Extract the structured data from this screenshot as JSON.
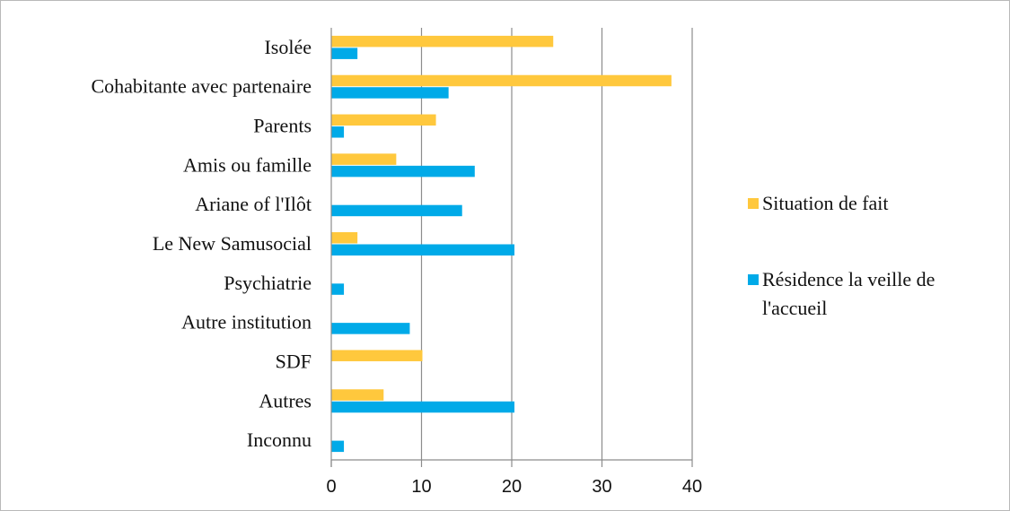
{
  "chart_data": {
    "type": "bar",
    "orientation": "horizontal",
    "categories": [
      "Isolée",
      "Cohabitante avec partenaire",
      "Parents",
      "Amis ou famille",
      "Ariane of l'Ilôt",
      "Le New Samusocial",
      "Psychiatrie",
      "Autre institution",
      "SDF",
      "Autres",
      "Inconnu"
    ],
    "series": [
      {
        "name": "Situation de fait",
        "color": "#FFC83D",
        "values": [
          24.6,
          37.7,
          11.6,
          7.2,
          0,
          2.9,
          0,
          0,
          10.1,
          5.8,
          0
        ]
      },
      {
        "name": "Résidence la veille de l'accueil",
        "color": "#00AAE8",
        "values": [
          2.9,
          13.0,
          1.4,
          15.9,
          14.5,
          20.3,
          1.4,
          8.7,
          0,
          20.3,
          1.4
        ]
      }
    ],
    "xlim": [
      0,
      40
    ],
    "xticks": [
      0,
      10,
      20,
      30,
      40
    ],
    "grid": "vertical",
    "legend": "right"
  }
}
